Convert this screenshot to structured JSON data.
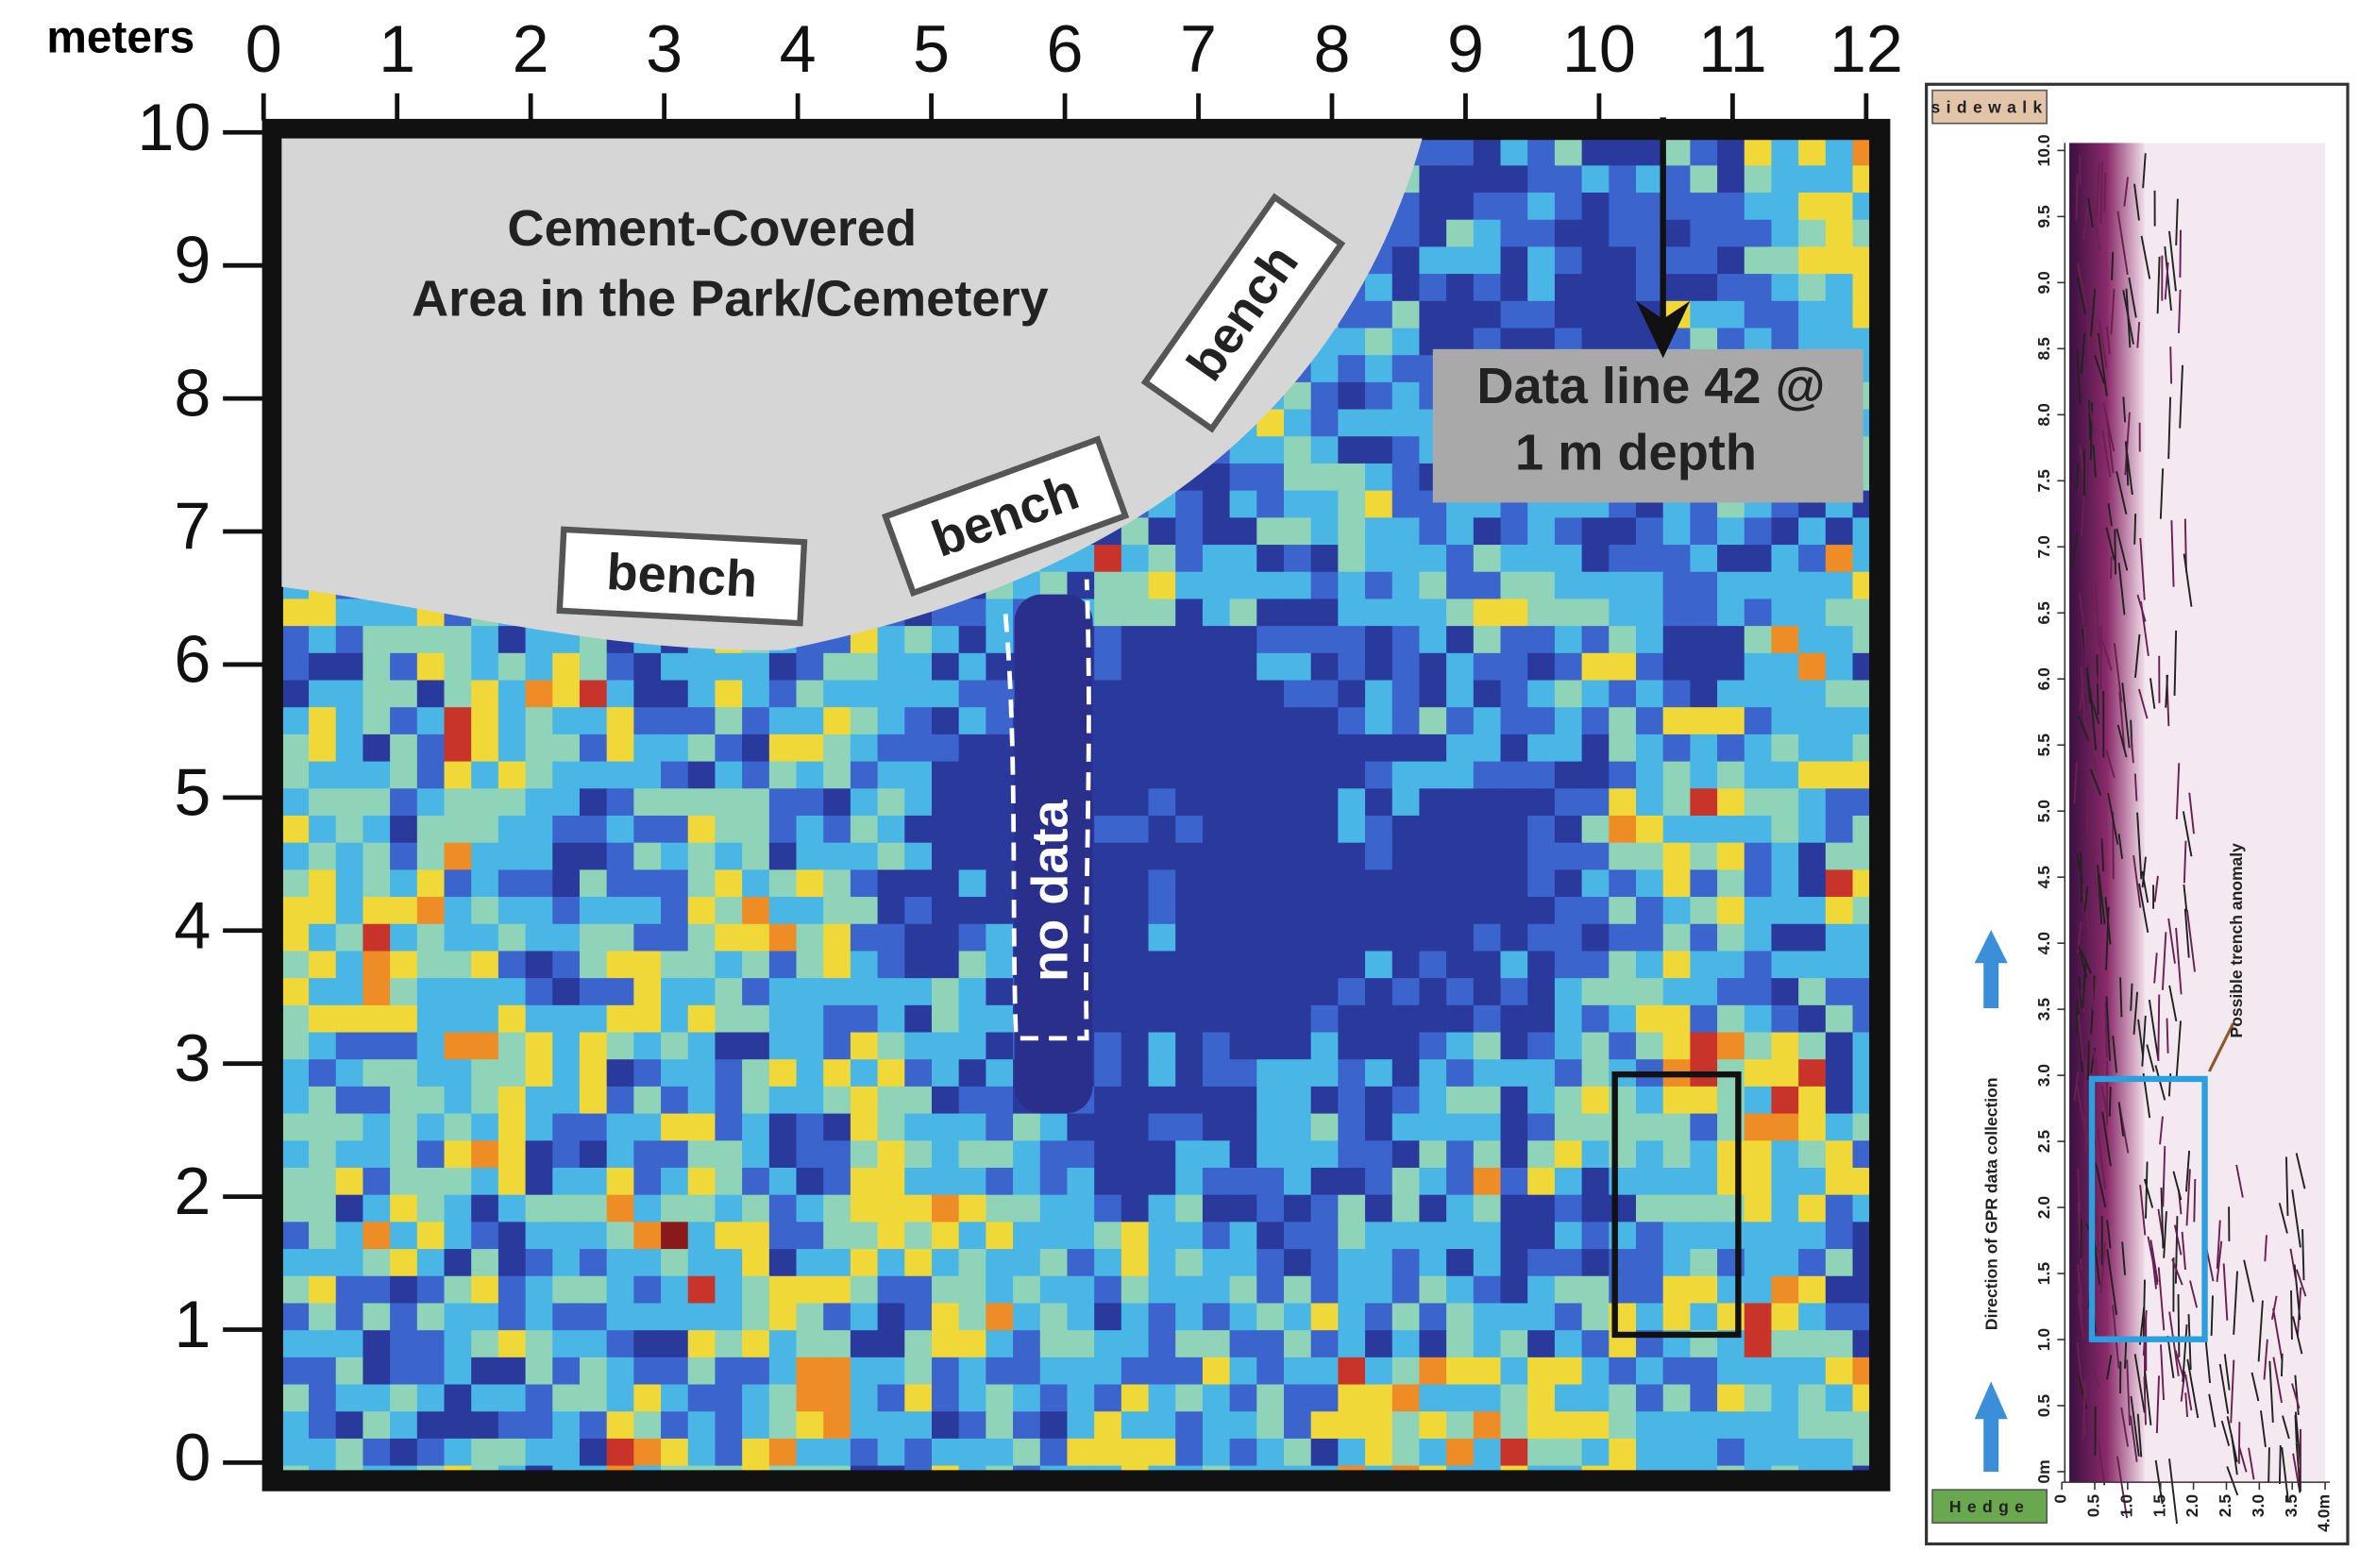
{
  "map": {
    "x_unit": "meters",
    "x_ticks": [
      0,
      1,
      2,
      3,
      4,
      5,
      6,
      7,
      8,
      9,
      10,
      11,
      12
    ],
    "y_ticks": [
      0,
      1,
      2,
      3,
      4,
      5,
      6,
      7,
      8,
      9,
      10
    ],
    "area_label": [
      "Cement-Covered",
      "Area in the Park/Cemetery"
    ],
    "benches": [
      "bench",
      "bench",
      "bench"
    ],
    "no_data": "no data",
    "data_line_label": [
      "Data line 42 @",
      "1 m depth"
    ]
  },
  "radargram": {
    "top_tag": "sidewalk",
    "bottom_tag": "Hedge",
    "y_ticks": [
      {
        "value": 0,
        "label": "0m"
      },
      0.5,
      {
        "value": 1,
        "label": "1.0"
      },
      1.5,
      {
        "value": 2,
        "label": "2.0"
      },
      2.5,
      {
        "value": 3,
        "label": "3.0"
      },
      3.5,
      {
        "value": 4,
        "label": "4.0"
      },
      4.5,
      {
        "value": 5,
        "label": "5.0"
      },
      5.5,
      {
        "value": 6,
        "label": "6.0"
      },
      6.5,
      {
        "value": 7,
        "label": "7.0"
      },
      7.5,
      {
        "value": 8,
        "label": "8.0"
      },
      8.5,
      {
        "value": 9,
        "label": "9.0"
      },
      9.5,
      {
        "value": 10,
        "label": "10.0"
      }
    ],
    "x_ticks": [
      0,
      0.5,
      {
        "value": 1,
        "label": "1.0"
      },
      1.5,
      {
        "value": 2,
        "label": "2.0"
      },
      2.5,
      {
        "value": 3,
        "label": "3.0"
      },
      3.5,
      {
        "value": 4,
        "label": "4.0m"
      }
    ],
    "direction_label": "Direction of GPR data collection",
    "anomaly_label": "Possible trench anomaly"
  }
}
